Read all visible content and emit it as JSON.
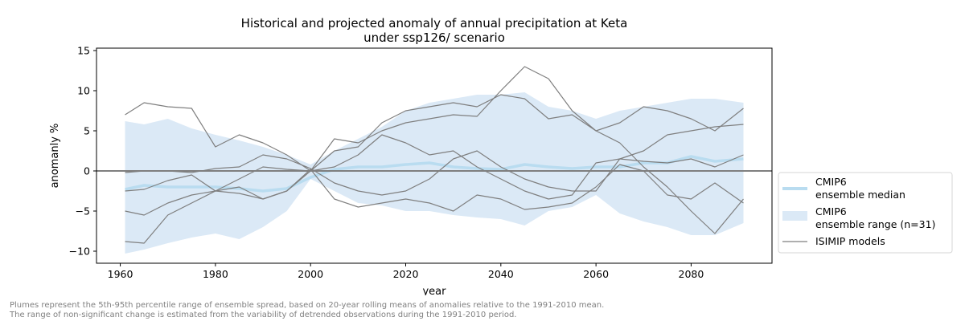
{
  "chart_data": {
    "type": "line",
    "title": [
      "Historical and projected anomaly of annual precipitation at Keta",
      "under ssp126/ scenario"
    ],
    "xlabel": "year",
    "ylabel": "anomanly %",
    "xlim": [
      1955,
      2097
    ],
    "ylim": [
      -11.5,
      15.3
    ],
    "xticks": [
      1960,
      1980,
      2000,
      2020,
      2040,
      2060,
      2080
    ],
    "yticks": [
      -10,
      -5,
      0,
      5,
      10,
      15
    ],
    "zero_line": 0,
    "grid": false,
    "legend": {
      "placement": "right",
      "entries": [
        {
          "label": [
            "CMIP6",
            "ensemble median"
          ],
          "kind": "line"
        },
        {
          "label": [
            "CMIP6",
            "ensemble range (n=31)"
          ],
          "kind": "band"
        },
        {
          "label": [
            "ISIMIP models"
          ],
          "kind": "line"
        }
      ]
    },
    "colors": {
      "median": "#b9dcf0",
      "band": "#dbe9f6",
      "isimip": "#7f7f7f",
      "zero": "#7f7f7f"
    },
    "x": [
      1961,
      1965,
      1970,
      1975,
      1980,
      1985,
      1990,
      1995,
      2000,
      2005,
      2010,
      2015,
      2020,
      2025,
      2030,
      2035,
      2040,
      2045,
      2050,
      2055,
      2060,
      2065,
      2070,
      2075,
      2080,
      2085,
      2091
    ],
    "band_upper": [
      6.2,
      5.8,
      6.5,
      5.3,
      4.5,
      3.8,
      3.0,
      2.0,
      0.8,
      2.5,
      4.0,
      5.5,
      7.5,
      8.5,
      9.0,
      9.5,
      9.5,
      9.8,
      8.0,
      7.5,
      6.5,
      7.5,
      8.0,
      8.5,
      9.0,
      9.0,
      8.5
    ],
    "band_lower": [
      -10.3,
      -9.8,
      -9.0,
      -8.3,
      -7.8,
      -8.5,
      -7.0,
      -5.0,
      -1.0,
      -2.5,
      -4.0,
      -4.3,
      -5.0,
      -5.0,
      -5.5,
      -5.8,
      -6.0,
      -6.8,
      -5.0,
      -4.5,
      -3.0,
      -5.3,
      -6.3,
      -7.0,
      -8.0,
      -8.0,
      -6.5
    ],
    "series": [
      {
        "name": "CMIP6 ensemble median",
        "values": [
          -2.3,
          -1.8,
          -2.0,
          -2.0,
          -2.0,
          -2.2,
          -2.5,
          -2.2,
          -0.8,
          0.2,
          0.5,
          0.5,
          0.8,
          1.0,
          0.5,
          0.3,
          0.2,
          0.8,
          0.5,
          0.3,
          0.5,
          0.5,
          1.0,
          1.0,
          1.8,
          1.2,
          1.5
        ]
      },
      {
        "name": "ISIMIP model 1",
        "values": [
          7.0,
          8.5,
          8.0,
          7.8,
          3.0,
          4.5,
          3.5,
          2.0,
          0.0,
          2.5,
          3.0,
          6.0,
          7.5,
          8.0,
          8.5,
          8.0,
          9.5,
          9.0,
          6.5,
          7.0,
          5.0,
          6.0,
          8.0,
          7.5,
          6.5,
          5.0,
          7.8
        ]
      },
      {
        "name": "ISIMIP model 2",
        "values": [
          -0.2,
          0.0,
          0.0,
          -0.2,
          0.3,
          0.5,
          2.0,
          1.5,
          0.3,
          -1.5,
          -2.5,
          -3.0,
          -2.5,
          -1.0,
          1.5,
          2.5,
          0.5,
          -1.0,
          -2.0,
          -2.5,
          -2.5,
          1.5,
          2.5,
          4.5,
          5.0,
          5.5,
          5.8
        ]
      },
      {
        "name": "ISIMIP model 3",
        "values": [
          -5.0,
          -5.5,
          -4.0,
          -3.0,
          -2.5,
          -1.0,
          0.5,
          0.2,
          0.0,
          4.0,
          3.5,
          5.0,
          6.0,
          6.5,
          7.0,
          6.8,
          10.0,
          13.0,
          11.5,
          7.5,
          5.0,
          3.5,
          0.5,
          -2.0,
          -5.0,
          -7.8,
          -3.5
        ]
      },
      {
        "name": "ISIMIP model 4",
        "values": [
          -8.8,
          -9.0,
          -5.5,
          -4.0,
          -2.5,
          -2.8,
          -3.5,
          -2.5,
          0.2,
          -3.5,
          -4.5,
          -4.0,
          -3.5,
          -4.0,
          -5.0,
          -3.0,
          -3.5,
          -4.8,
          -4.5,
          -4.0,
          -2.0,
          0.8,
          0.0,
          -3.0,
          -3.5,
          -1.5,
          -4.0
        ]
      },
      {
        "name": "ISIMIP model 5",
        "values": [
          -2.5,
          -2.3,
          -1.2,
          -0.5,
          -2.5,
          -2.0,
          -3.5,
          -2.5,
          0.0,
          0.5,
          2.0,
          4.5,
          3.5,
          2.0,
          2.5,
          0.5,
          -1.0,
          -2.5,
          -3.5,
          -3.0,
          1.0,
          1.5,
          1.2,
          1.0,
          1.5,
          0.5,
          2.0
        ]
      }
    ]
  },
  "footnote": [
    "Plumes represent the 5th-95th percentile range of ensemble spread, based on 20-year rolling means of anomalies relative to the 1991-2010 mean.",
    "The range of non-significant change is estimated from the variability of detrended observations during the 1991-2010 period."
  ]
}
